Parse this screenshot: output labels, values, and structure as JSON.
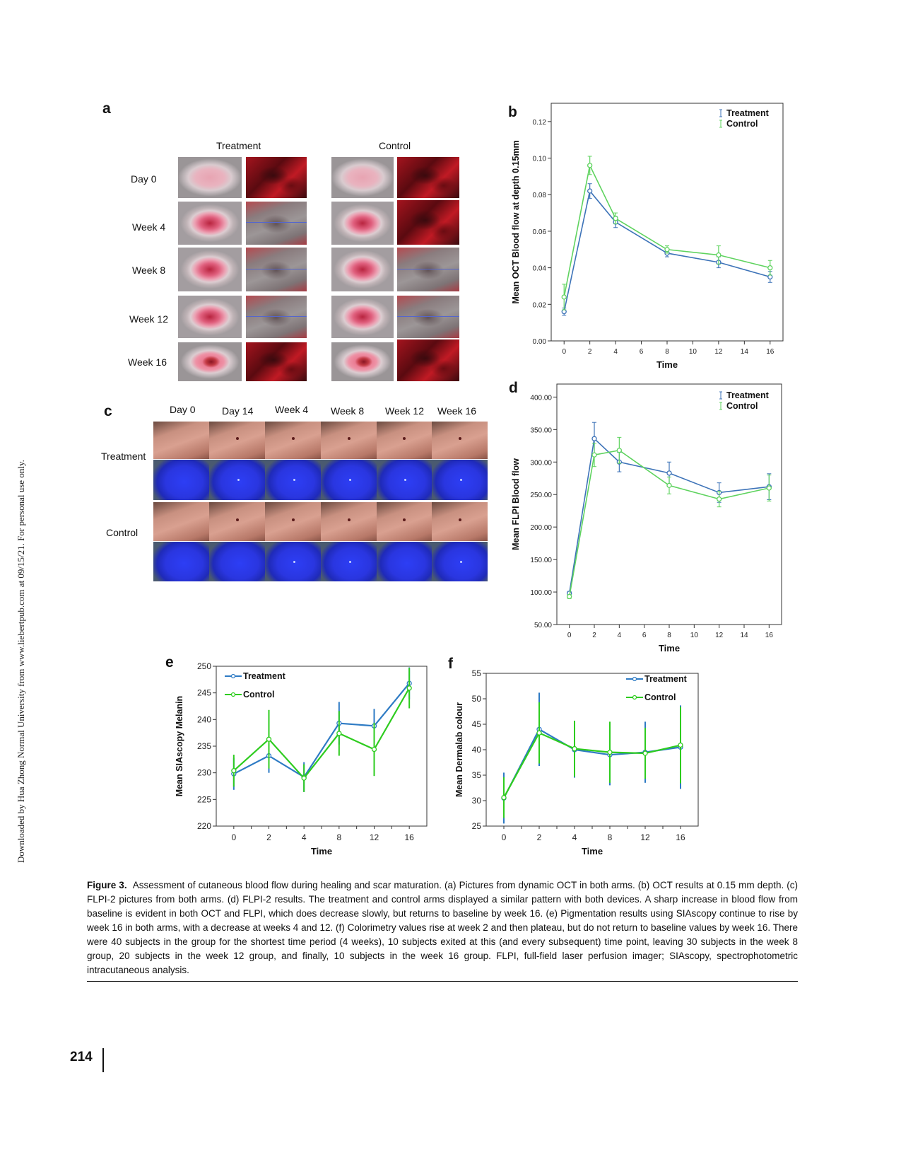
{
  "side_note": "Downloaded by Hua Zhong Normal University from www.liebertpub.com at 09/15/21. For personal use only.",
  "panels": {
    "a": {
      "letter": "a",
      "columns": [
        "Treatment",
        "Control"
      ],
      "rows": [
        "Day 0",
        "Week 4",
        "Week 8",
        "Week 12",
        "Week 16"
      ]
    },
    "c": {
      "letter": "c",
      "columns": [
        "Day 0",
        "Day 14",
        "Week 4",
        "Week 8",
        "Week 12",
        "Week 16"
      ],
      "rows": [
        "Treatment",
        "Control"
      ]
    },
    "b": {
      "letter": "b"
    },
    "d": {
      "letter": "d"
    },
    "e": {
      "letter": "e"
    },
    "f": {
      "letter": "f"
    }
  },
  "chart_data": [
    {
      "id": "b",
      "type": "line",
      "x": [
        0,
        2,
        4,
        8,
        12,
        16
      ],
      "xlabel": "Time",
      "ylabel": "Mean OCT Blood flow at depth 0.15mm",
      "xlim": [
        -1,
        17
      ],
      "ylim": [
        0,
        0.13
      ],
      "xticks": [
        "0",
        "2",
        "4",
        "6",
        "8",
        "10",
        "12",
        "14",
        "16"
      ],
      "xtick_values": [
        0,
        2,
        4,
        6,
        8,
        10,
        12,
        14,
        16
      ],
      "yticks": [
        "0.00",
        "0.02",
        "0.04",
        "0.06",
        "0.08",
        "0.10",
        "0.12"
      ],
      "ytick_values": [
        0,
        0.02,
        0.04,
        0.06,
        0.08,
        0.1,
        0.12
      ],
      "legend": "top-right",
      "series": [
        {
          "name": "Treatment",
          "color": "#3d73b8",
          "values": [
            0.016,
            0.082,
            0.065,
            0.048,
            0.043,
            0.035
          ],
          "err": [
            0.002,
            0.004,
            0.003,
            0.002,
            0.003,
            0.003
          ]
        },
        {
          "name": "Control",
          "color": "#5fd35f",
          "values": [
            0.024,
            0.096,
            0.067,
            0.05,
            0.047,
            0.04
          ],
          "err": [
            0.007,
            0.005,
            0.003,
            0.002,
            0.005,
            0.004
          ]
        }
      ]
    },
    {
      "id": "d",
      "type": "line",
      "x": [
        0,
        2,
        4,
        8,
        12,
        16
      ],
      "xlabel": "Time",
      "ylabel": "Mean FLPI Blood flow",
      "xlim": [
        -1,
        17
      ],
      "ylim": [
        50,
        420
      ],
      "xticks": [
        "0",
        "2",
        "4",
        "6",
        "8",
        "10",
        "12",
        "14",
        "16"
      ],
      "xtick_values": [
        0,
        2,
        4,
        6,
        8,
        10,
        12,
        14,
        16
      ],
      "yticks": [
        "50.00",
        "100.00",
        "150.00",
        "200.00",
        "250.00",
        "300.00",
        "350.00",
        "400.00"
      ],
      "ytick_values": [
        50,
        100,
        150,
        200,
        250,
        300,
        350,
        400
      ],
      "legend": "top-right",
      "series": [
        {
          "name": "Treatment",
          "color": "#3d73b8",
          "values": [
            98,
            336,
            300,
            283,
            253,
            262
          ],
          "err": [
            3,
            25,
            15,
            17,
            15,
            20
          ]
        },
        {
          "name": "Control",
          "color": "#5fd35f",
          "values": [
            93,
            311,
            318,
            264,
            243,
            260
          ],
          "err": [
            3,
            18,
            20,
            13,
            12,
            20
          ]
        }
      ]
    },
    {
      "id": "e",
      "type": "line",
      "categories": [
        "0",
        "2",
        "4",
        "8",
        "12",
        "16"
      ],
      "xlabel": "Time",
      "ylabel": "Mean SIAscopy Melanin",
      "ylim": [
        220,
        250
      ],
      "yticks": [
        "220",
        "225",
        "230",
        "235",
        "240",
        "245",
        "250"
      ],
      "ytick_values": [
        220,
        225,
        230,
        235,
        240,
        245,
        250
      ],
      "legend": "top-left",
      "series": [
        {
          "name": "Treatment",
          "color": "#2e7bc4",
          "values": [
            229.8,
            233.2,
            229.2,
            239.3,
            238.8,
            246.8
          ],
          "err": [
            3.0,
            3.2,
            2.8,
            4.0,
            3.2,
            3.0
          ]
        },
        {
          "name": "Control",
          "color": "#2ecc1f",
          "values": [
            230.4,
            236.3,
            229.0,
            237.4,
            234.4,
            245.9
          ],
          "err": [
            3.0,
            5.5,
            2.6,
            4.2,
            5.0,
            3.8
          ]
        }
      ]
    },
    {
      "id": "f",
      "type": "line",
      "categories": [
        "0",
        "2",
        "4",
        "8",
        "12",
        "16"
      ],
      "xlabel": "Time",
      "ylabel": "Mean Dermalab colour",
      "ylim": [
        25,
        55
      ],
      "yticks": [
        "25",
        "30",
        "35",
        "40",
        "45",
        "50",
        "55"
      ],
      "ytick_values": [
        25,
        30,
        35,
        40,
        45,
        50,
        55
      ],
      "legend": "top-right",
      "series": [
        {
          "name": "Treatment",
          "color": "#2e7bc4",
          "values": [
            30.5,
            44.0,
            40.0,
            39.0,
            39.5,
            40.5
          ],
          "err": [
            5.0,
            7.2,
            5.5,
            6.0,
            6.0,
            8.2
          ]
        },
        {
          "name": "Control",
          "color": "#2ecc1f",
          "values": [
            30.6,
            43.3,
            40.2,
            39.5,
            39.3,
            40.9
          ],
          "err": [
            4.0,
            6.0,
            5.5,
            6.0,
            5.0,
            7.5
          ]
        }
      ]
    }
  ],
  "caption": {
    "lead": "Figure 3.",
    "text": "Assessment of cutaneous blood flow during healing and scar maturation. (a) Pictures from dynamic OCT in both arms. (b) OCT results at 0.15 mm depth. (c) FLPI-2 pictures from both arms. (d) FLPI-2 results. The treatment and control arms displayed a similar pattern with both devices. A sharp increase in blood flow from baseline is evident in both OCT and FLPI, which does decrease slowly, but returns to baseline by week 16. (e) Pigmentation results using SIAscopy continue to rise by week 16 in both arms, with a decrease at weeks 4 and 12. (f) Colorimetry values rise at week 2 and then plateau, but do not return to baseline values by week 16. There were 40 subjects in the group for the shortest time period (4 weeks), 10 subjects exited at this (and every subsequent) time point, leaving 30 subjects in the week 8 group, 20 subjects in the week 12 group, and finally, 10 subjects in the week 16 group. FLPI, full-field laser perfusion imager; SIAscopy, spectrophotometric intracutaneous analysis."
  },
  "page_number": "214"
}
